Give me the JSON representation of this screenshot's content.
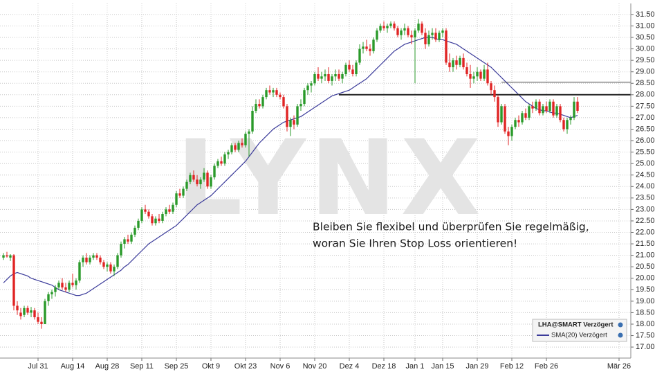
{
  "chart_data": {
    "type": "candlestick",
    "watermark": "LYNX",
    "annotation": [
      "Bleiben Sie flexibel und überprüfen Sie regelmäßig,",
      "woran Sie Ihren Stop Loss orientieren!"
    ],
    "legend_title": "LHA@SMART Verzögert",
    "sma_name": "SMA(20) Verzögert",
    "up_color": "#2a9a2a",
    "down_color": "#e02424",
    "sma_color": "#3b3b9a",
    "ylim": [
      16.52,
      31.98
    ],
    "yticks": [
      {
        "value": 17,
        "label": "17.00"
      },
      {
        "value": 17.5,
        "label": "17.50"
      },
      {
        "value": 18,
        "label": "18.00"
      },
      {
        "value": 18.5,
        "label": "18.50"
      },
      {
        "value": 19,
        "label": "19.00"
      },
      {
        "value": 19.5,
        "label": "19.50"
      },
      {
        "value": 20,
        "label": "20.00"
      },
      {
        "value": 20.5,
        "label": "20.50"
      },
      {
        "value": 21,
        "label": "21.00"
      },
      {
        "value": 21.5,
        "label": "21.50"
      },
      {
        "value": 22,
        "label": "22.00"
      },
      {
        "value": 22.5,
        "label": "22.50"
      },
      {
        "value": 23,
        "label": "23.00"
      },
      {
        "value": 23.5,
        "label": "23.50"
      },
      {
        "value": 24,
        "label": "24.00"
      },
      {
        "value": 24.5,
        "label": "24.50"
      },
      {
        "value": 25,
        "label": "25.00"
      },
      {
        "value": 25.5,
        "label": "25.50"
      },
      {
        "value": 26,
        "label": "26.00"
      },
      {
        "value": 26.5,
        "label": "26.50"
      },
      {
        "value": 27,
        "label": "27.00"
      },
      {
        "value": 27.5,
        "label": "27.50"
      },
      {
        "value": 28,
        "label": "28.00"
      },
      {
        "value": 28.5,
        "label": "28.50"
      },
      {
        "value": 29,
        "label": "29.00"
      },
      {
        "value": 29.5,
        "label": "29.50"
      },
      {
        "value": 30,
        "label": "30.00"
      },
      {
        "value": 30.5,
        "label": "30.50"
      },
      {
        "value": 31,
        "label": "31.00"
      },
      {
        "value": 31.5,
        "label": "31.50"
      }
    ],
    "grid": true,
    "levels": [
      28.0,
      28.55
    ],
    "categories": [
      null,
      null,
      null,
      null,
      null,
      null,
      null,
      null,
      null,
      null,
      "Jul 31",
      null,
      null,
      null,
      null,
      null,
      null,
      null,
      null,
      null,
      "Aug 14",
      null,
      null,
      null,
      null,
      null,
      null,
      null,
      null,
      null,
      "Aug 28",
      null,
      null,
      null,
      null,
      null,
      null,
      null,
      null,
      null,
      "Sep 11",
      null,
      null,
      null,
      null,
      null,
      null,
      null,
      null,
      null,
      "Sep 25",
      null,
      null,
      null,
      null,
      null,
      null,
      null,
      null,
      null,
      "Okt 9",
      null,
      null,
      null,
      null,
      null,
      null,
      null,
      null,
      null,
      "Okt 23",
      null,
      null,
      null,
      null,
      null,
      null,
      null,
      null,
      null,
      "Nov 6",
      null,
      null,
      null,
      null,
      null,
      null,
      null,
      null,
      null,
      "Nov 20",
      null,
      null,
      null,
      null,
      null,
      null,
      null,
      null,
      null,
      "Dez 4",
      null,
      null,
      null,
      null,
      null,
      null,
      null,
      null,
      null,
      "Dez 18",
      null,
      null,
      null,
      null,
      null,
      null,
      null,
      null,
      "Jan 1",
      null,
      null,
      null,
      null,
      null,
      null,
      null,
      "Jan 15",
      null,
      null,
      null,
      null,
      null,
      null,
      null,
      null,
      null,
      "Jan 29",
      null,
      null,
      null,
      null,
      null,
      null,
      null,
      null,
      null,
      "Feb 12",
      null,
      null,
      null,
      null,
      null,
      null,
      null,
      null,
      null,
      "Feb 26",
      null,
      null,
      null,
      null,
      null,
      null,
      null,
      null,
      null,
      null,
      null,
      null,
      null,
      null,
      null,
      null,
      null,
      null,
      null,
      null,
      "Mär 26",
      null
    ],
    "candles": [
      [
        20.9,
        21.1,
        20.8,
        21.0
      ],
      [
        21.0,
        21.15,
        20.9,
        20.95
      ],
      [
        20.9,
        21.05,
        20.75,
        21.0
      ],
      [
        21.0,
        21.05,
        18.6,
        18.8
      ],
      [
        18.8,
        19.0,
        18.4,
        18.6
      ],
      [
        18.5,
        18.7,
        18.2,
        18.35
      ],
      [
        18.4,
        18.8,
        18.3,
        18.7
      ],
      [
        18.7,
        18.8,
        18.4,
        18.5
      ],
      [
        18.5,
        18.75,
        18.3,
        18.6
      ],
      [
        18.6,
        18.7,
        18.2,
        18.3
      ],
      [
        18.3,
        18.5,
        18.0,
        18.1
      ],
      [
        18.1,
        18.3,
        17.8,
        18.0
      ],
      [
        18.0,
        19.1,
        18.0,
        19.0
      ],
      [
        19.0,
        19.4,
        18.8,
        19.3
      ],
      [
        19.3,
        19.5,
        19.1,
        19.4
      ],
      [
        19.4,
        19.7,
        19.2,
        19.6
      ],
      [
        19.6,
        19.9,
        19.5,
        19.8
      ],
      [
        19.8,
        20.0,
        19.5,
        19.6
      ],
      [
        19.6,
        19.8,
        19.4,
        19.5
      ],
      [
        19.5,
        19.9,
        19.4,
        19.8
      ],
      [
        19.8,
        20.2,
        19.6,
        19.7
      ],
      [
        19.7,
        20.0,
        19.5,
        19.9
      ],
      [
        19.9,
        20.8,
        19.8,
        20.7
      ],
      [
        20.7,
        21.0,
        20.5,
        20.9
      ],
      [
        20.9,
        21.1,
        20.6,
        20.7
      ],
      [
        20.7,
        21.0,
        20.6,
        20.9
      ],
      [
        20.9,
        21.1,
        20.8,
        21.0
      ],
      [
        21.0,
        21.1,
        20.8,
        20.9
      ],
      [
        20.9,
        21.0,
        20.6,
        20.7
      ],
      [
        20.7,
        20.8,
        20.4,
        20.5
      ],
      [
        20.5,
        20.7,
        20.3,
        20.6
      ],
      [
        20.6,
        20.7,
        20.2,
        20.3
      ],
      [
        20.3,
        20.6,
        20.1,
        20.5
      ],
      [
        20.5,
        21.1,
        20.4,
        21.0
      ],
      [
        21.0,
        21.6,
        20.9,
        21.5
      ],
      [
        21.5,
        21.8,
        21.3,
        21.7
      ],
      [
        21.7,
        21.9,
        21.5,
        21.6
      ],
      [
        21.6,
        22.0,
        21.5,
        21.9
      ],
      [
        21.9,
        22.3,
        21.8,
        22.2
      ],
      [
        22.2,
        22.6,
        22.1,
        22.5
      ],
      [
        22.5,
        23.1,
        22.4,
        23.0
      ],
      [
        23.0,
        23.2,
        22.8,
        22.9
      ],
      [
        22.9,
        23.0,
        22.6,
        22.7
      ],
      [
        22.7,
        22.8,
        22.3,
        22.4
      ],
      [
        22.4,
        22.7,
        22.3,
        22.6
      ],
      [
        22.6,
        22.8,
        22.4,
        22.5
      ],
      [
        22.5,
        22.9,
        22.4,
        22.8
      ],
      [
        22.8,
        23.1,
        22.7,
        23.0
      ],
      [
        23.0,
        23.2,
        22.8,
        22.9
      ],
      [
        22.9,
        23.3,
        22.8,
        23.2
      ],
      [
        23.2,
        23.8,
        23.1,
        23.7
      ],
      [
        23.7,
        23.9,
        23.5,
        23.6
      ],
      [
        23.6,
        24.0,
        23.5,
        23.9
      ],
      [
        23.9,
        24.3,
        23.8,
        24.2
      ],
      [
        24.2,
        24.6,
        24.1,
        24.5
      ],
      [
        24.5,
        24.7,
        24.2,
        24.3
      ],
      [
        24.3,
        24.5,
        24.0,
        24.1
      ],
      [
        24.1,
        24.4,
        23.9,
        24.3
      ],
      [
        24.3,
        24.8,
        24.2,
        24.6
      ],
      [
        24.6,
        24.7,
        23.9,
        24.0
      ],
      [
        24.0,
        24.5,
        23.9,
        24.4
      ],
      [
        24.4,
        25.0,
        24.3,
        24.9
      ],
      [
        24.9,
        25.2,
        24.8,
        25.1
      ],
      [
        25.1,
        25.3,
        24.9,
        25.0
      ],
      [
        25.0,
        25.5,
        24.9,
        25.4
      ],
      [
        25.4,
        25.6,
        25.2,
        25.5
      ],
      [
        25.5,
        25.9,
        25.4,
        25.8
      ],
      [
        25.8,
        25.9,
        25.5,
        25.6
      ],
      [
        25.6,
        26.0,
        25.5,
        25.9
      ],
      [
        25.9,
        26.1,
        25.7,
        25.8
      ],
      [
        25.8,
        26.4,
        25.7,
        26.3
      ],
      [
        26.3,
        26.5,
        25.3,
        26.4
      ],
      [
        26.4,
        27.5,
        26.3,
        27.3
      ],
      [
        27.3,
        27.8,
        27.2,
        27.6
      ],
      [
        27.6,
        27.8,
        27.4,
        27.5
      ],
      [
        27.5,
        28.0,
        27.4,
        27.9
      ],
      [
        27.9,
        28.3,
        27.8,
        28.2
      ],
      [
        28.2,
        28.4,
        28.0,
        28.1
      ],
      [
        28.1,
        28.3,
        27.9,
        28.2
      ],
      [
        28.2,
        28.3,
        27.9,
        28.0
      ],
      [
        28.0,
        28.1,
        27.8,
        27.9
      ],
      [
        27.9,
        28.0,
        27.4,
        27.5
      ],
      [
        27.5,
        27.6,
        26.4,
        26.6
      ],
      [
        26.6,
        27.0,
        26.2,
        26.9
      ],
      [
        26.9,
        27.1,
        26.5,
        26.7
      ],
      [
        26.7,
        27.6,
        26.6,
        27.5
      ],
      [
        27.5,
        27.8,
        27.3,
        27.6
      ],
      [
        27.6,
        28.3,
        27.5,
        28.2
      ],
      [
        28.2,
        28.5,
        28.0,
        28.4
      ],
      [
        28.4,
        28.6,
        28.1,
        28.5
      ],
      [
        28.5,
        29.0,
        28.4,
        28.9
      ],
      [
        28.9,
        29.2,
        28.6,
        28.7
      ],
      [
        28.7,
        29.0,
        28.5,
        28.8
      ],
      [
        28.8,
        29.1,
        28.6,
        28.9
      ],
      [
        28.9,
        29.2,
        28.5,
        28.6
      ],
      [
        28.6,
        28.9,
        28.4,
        28.8
      ],
      [
        28.8,
        29.1,
        28.6,
        28.9
      ],
      [
        28.9,
        29.1,
        28.6,
        28.7
      ],
      [
        28.7,
        29.0,
        28.5,
        28.9
      ],
      [
        28.9,
        29.4,
        28.8,
        29.3
      ],
      [
        29.3,
        29.5,
        29.0,
        29.1
      ],
      [
        29.1,
        29.3,
        28.8,
        28.9
      ],
      [
        28.9,
        29.5,
        28.8,
        29.4
      ],
      [
        29.4,
        30.2,
        29.3,
        30.0
      ],
      [
        30.0,
        30.3,
        29.8,
        30.1
      ],
      [
        30.1,
        30.4,
        29.9,
        30.0
      ],
      [
        30.0,
        30.2,
        29.7,
        29.9
      ],
      [
        29.9,
        30.5,
        29.8,
        30.4
      ],
      [
        30.4,
        30.9,
        30.3,
        30.8
      ],
      [
        30.8,
        31.1,
        30.7,
        31.0
      ],
      [
        31.0,
        31.2,
        30.8,
        30.9
      ],
      [
        30.9,
        31.1,
        30.7,
        31.0
      ],
      [
        31.0,
        31.2,
        30.9,
        31.1
      ],
      [
        31.1,
        31.2,
        30.8,
        30.9
      ],
      [
        30.9,
        31.0,
        30.5,
        30.6
      ],
      [
        30.6,
        30.9,
        30.4,
        30.8
      ],
      [
        30.8,
        31.1,
        30.6,
        30.9
      ],
      [
        30.9,
        31.0,
        30.5,
        30.6
      ],
      [
        30.6,
        30.8,
        30.2,
        30.5
      ],
      [
        30.5,
        30.9,
        28.5,
        30.8
      ],
      [
        30.8,
        31.3,
        30.7,
        31.1
      ],
      [
        31.1,
        31.2,
        30.6,
        30.7
      ],
      [
        30.7,
        30.9,
        30.0,
        30.2
      ],
      [
        30.2,
        30.8,
        30.1,
        30.6
      ],
      [
        30.6,
        30.9,
        30.4,
        30.7
      ],
      [
        30.7,
        30.9,
        30.3,
        30.4
      ],
      [
        30.4,
        30.8,
        30.3,
        30.7
      ],
      [
        30.7,
        30.9,
        30.5,
        30.8
      ],
      [
        30.8,
        30.9,
        29.3,
        29.4
      ],
      [
        29.4,
        29.8,
        29.0,
        29.2
      ],
      [
        29.2,
        29.6,
        29.0,
        29.5
      ],
      [
        29.5,
        29.7,
        29.1,
        29.3
      ],
      [
        29.3,
        29.7,
        29.2,
        29.6
      ],
      [
        29.6,
        29.8,
        29.1,
        29.2
      ],
      [
        29.2,
        29.4,
        28.8,
        28.9
      ],
      [
        28.9,
        29.3,
        28.3,
        28.7
      ],
      [
        28.7,
        29.0,
        28.5,
        28.8
      ],
      [
        28.8,
        29.2,
        28.6,
        29.0
      ],
      [
        29.0,
        29.1,
        28.6,
        28.7
      ],
      [
        28.7,
        29.3,
        28.6,
        29.1
      ],
      [
        29.1,
        29.4,
        28.4,
        28.5
      ],
      [
        28.5,
        28.6,
        28.0,
        28.2
      ],
      [
        28.2,
        28.4,
        27.7,
        27.9
      ],
      [
        27.9,
        28.0,
        26.6,
        26.8
      ],
      [
        26.8,
        27.6,
        26.7,
        27.5
      ],
      [
        27.5,
        27.6,
        26.3,
        26.4
      ],
      [
        26.4,
        26.6,
        25.8,
        26.2
      ],
      [
        26.2,
        26.7,
        26.0,
        26.6
      ],
      [
        26.6,
        27.0,
        26.5,
        26.9
      ],
      [
        26.9,
        27.1,
        26.6,
        26.8
      ],
      [
        26.8,
        27.3,
        26.7,
        27.2
      ],
      [
        27.2,
        27.4,
        26.9,
        27.0
      ],
      [
        27.0,
        27.6,
        26.9,
        27.5
      ],
      [
        27.5,
        27.7,
        27.2,
        27.4
      ],
      [
        27.4,
        27.8,
        27.3,
        27.7
      ],
      [
        27.7,
        27.8,
        27.1,
        27.2
      ],
      [
        27.2,
        27.6,
        27.1,
        27.5
      ],
      [
        27.5,
        27.7,
        27.2,
        27.3
      ],
      [
        27.3,
        27.8,
        27.2,
        27.7
      ],
      [
        27.7,
        27.8,
        27.0,
        27.1
      ],
      [
        27.1,
        27.6,
        27.0,
        27.5
      ],
      [
        27.5,
        27.6,
        26.8,
        26.9
      ],
      [
        26.9,
        27.0,
        26.4,
        26.5
      ],
      [
        26.5,
        27.0,
        26.3,
        26.9
      ],
      [
        26.9,
        27.1,
        26.7,
        27.0
      ],
      [
        27.0,
        27.9,
        26.9,
        27.7
      ],
      [
        27.7,
        27.9,
        27.2,
        27.3
      ],
      null,
      null,
      null,
      null,
      null,
      null,
      null,
      null,
      null,
      null,
      null,
      null,
      null
    ],
    "sma": [
      19.8,
      19.95,
      20.1,
      20.2,
      20.25,
      20.2,
      20.15,
      20.1,
      20.0,
      19.95,
      19.9,
      19.85,
      19.8,
      19.75,
      19.7,
      19.6,
      19.5,
      19.45,
      19.4,
      19.35,
      19.3,
      19.25,
      19.25,
      19.3,
      19.35,
      19.45,
      19.55,
      19.65,
      19.75,
      19.85,
      19.95,
      20.05,
      20.15,
      20.25,
      20.35,
      20.5,
      20.6,
      20.75,
      20.9,
      21.05,
      21.2,
      21.35,
      21.5,
      21.6,
      21.7,
      21.8,
      21.9,
      22.0,
      22.1,
      22.2,
      22.3,
      22.45,
      22.6,
      22.75,
      22.9,
      23.05,
      23.2,
      23.3,
      23.4,
      23.5,
      23.6,
      23.75,
      23.9,
      24.05,
      24.2,
      24.35,
      24.5,
      24.65,
      24.8,
      24.95,
      25.1,
      25.3,
      25.5,
      25.7,
      25.9,
      26.05,
      26.2,
      26.35,
      26.5,
      26.6,
      26.7,
      26.8,
      26.85,
      26.9,
      26.95,
      27.0,
      27.05,
      27.15,
      27.25,
      27.35,
      27.45,
      27.55,
      27.65,
      27.75,
      27.85,
      27.95,
      28.0,
      28.05,
      28.1,
      28.15,
      28.2,
      28.3,
      28.4,
      28.5,
      28.6,
      28.7,
      28.85,
      29.0,
      29.15,
      29.3,
      29.45,
      29.6,
      29.75,
      29.9,
      30.0,
      30.1,
      30.2,
      30.25,
      30.3,
      30.35,
      30.4,
      30.45,
      30.5,
      30.5,
      30.5,
      30.45,
      30.4,
      30.4,
      30.35,
      30.3,
      30.25,
      30.2,
      30.1,
      30.0,
      29.9,
      29.8,
      29.7,
      29.6,
      29.5,
      29.4,
      29.3,
      29.2,
      29.05,
      28.9,
      28.75,
      28.6,
      28.45,
      28.3,
      28.15,
      28.0,
      27.85,
      27.7,
      27.6,
      27.5,
      27.4,
      27.35,
      27.3,
      27.3,
      27.25,
      27.2,
      27.2,
      27.15,
      27.1,
      27.05,
      27.0,
      27.05,
      27.1,
      null,
      null,
      null,
      null,
      null,
      null,
      null,
      null,
      null,
      null,
      null,
      null,
      null
    ]
  }
}
